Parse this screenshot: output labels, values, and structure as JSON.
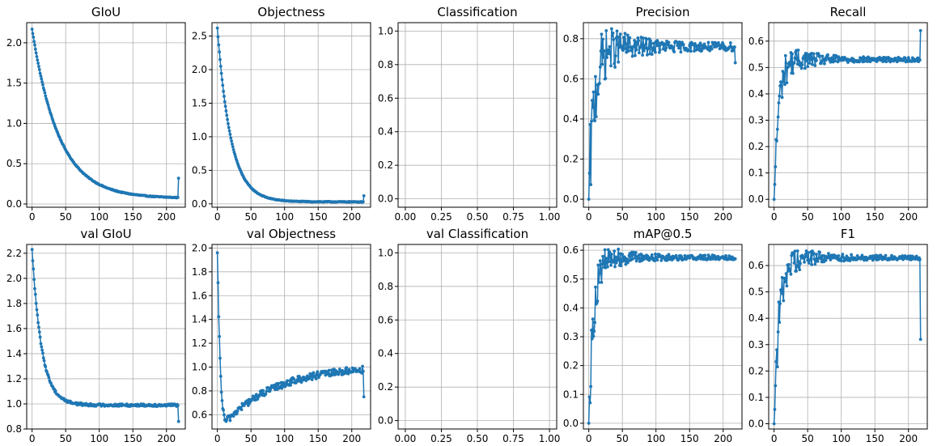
{
  "colors": {
    "series": "#1f77b4",
    "grid": "#b0b0b0",
    "axes": "#000000"
  },
  "chart_data": [
    {
      "type": "line",
      "title": "GIoU",
      "grid": true,
      "xlim": [
        -8,
        228
      ],
      "ylim": [
        -0.04,
        2.25
      ],
      "xticks": [
        0,
        50,
        100,
        150,
        200
      ],
      "xticklabels": [
        "0",
        "50",
        "100",
        "150",
        "200"
      ],
      "yticks": [
        0,
        0.5,
        1,
        1.5,
        2
      ],
      "yticklabels": [
        "0.0",
        "0.5",
        "1.0",
        "1.5",
        "2.0"
      ],
      "series": [
        {
          "gen": "decay",
          "start": 2.17,
          "end": 0.07,
          "k": 0.025,
          "noise": 0.01,
          "last": 0.32
        }
      ]
    },
    {
      "type": "line",
      "title": "Objectness",
      "grid": true,
      "xlim": [
        -8,
        228
      ],
      "ylim": [
        -0.05,
        2.7
      ],
      "xticks": [
        0,
        50,
        100,
        150,
        200
      ],
      "xticklabels": [
        "0",
        "50",
        "100",
        "150",
        "200"
      ],
      "yticks": [
        0,
        0.5,
        1,
        1.5,
        2,
        2.5
      ],
      "yticklabels": [
        "0.0",
        "0.5",
        "1.0",
        "1.5",
        "2.0",
        "2.5"
      ],
      "series": [
        {
          "gen": "decay",
          "start": 2.62,
          "end": 0.03,
          "k": 0.05,
          "noise": 0.01,
          "last": 0.12
        }
      ]
    },
    {
      "type": "line",
      "title": "Classification",
      "grid": true,
      "xlim": [
        -0.05,
        1.05
      ],
      "ylim": [
        -0.05,
        1.05
      ],
      "xticks": [
        0,
        0.25,
        0.5,
        0.75,
        1
      ],
      "xticklabels": [
        "0.00",
        "0.25",
        "0.50",
        "0.75",
        "1.00"
      ],
      "yticks": [
        0,
        0.2,
        0.4,
        0.6,
        0.8,
        1
      ],
      "yticklabels": [
        "0.0",
        "0.2",
        "0.4",
        "0.6",
        "0.8",
        "1.0"
      ],
      "series": []
    },
    {
      "type": "line",
      "title": "Precision",
      "grid": true,
      "xlim": [
        -8,
        228
      ],
      "ylim": [
        -0.04,
        0.88
      ],
      "xticks": [
        0,
        50,
        100,
        150,
        200
      ],
      "xticklabels": [
        "0",
        "50",
        "100",
        "150",
        "200"
      ],
      "yticks": [
        0,
        0.2,
        0.4,
        0.6,
        0.8
      ],
      "yticklabels": [
        "0.0",
        "0.2",
        "0.4",
        "0.6",
        "0.8"
      ],
      "series": [
        {
          "gen": "rise",
          "start": 0.0,
          "plateau": 0.76,
          "k": 0.12,
          "noise": 0.2,
          "noiseDecay": 40,
          "noiseFloor": 0.02,
          "last": 0.68
        }
      ]
    },
    {
      "type": "line",
      "title": "Recall",
      "grid": true,
      "xlim": [
        -8,
        228
      ],
      "ylim": [
        -0.03,
        0.67
      ],
      "xticks": [
        0,
        50,
        100,
        150,
        200
      ],
      "xticklabels": [
        "0",
        "50",
        "100",
        "150",
        "200"
      ],
      "yticks": [
        0,
        0.1,
        0.2,
        0.3,
        0.4,
        0.5,
        0.6
      ],
      "yticklabels": [
        "0.0",
        "0.1",
        "0.2",
        "0.3",
        "0.4",
        "0.5",
        "0.6"
      ],
      "series": [
        {
          "gen": "rise",
          "start": 0.0,
          "plateau": 0.53,
          "k": 0.15,
          "noise": 0.08,
          "noiseDecay": 40,
          "noiseFloor": 0.008,
          "last": 0.64
        }
      ]
    },
    {
      "type": "line",
      "title": "val GIoU",
      "grid": true,
      "xlim": [
        -8,
        228
      ],
      "ylim": [
        0.8,
        2.27
      ],
      "xticks": [
        0,
        50,
        100,
        150,
        200
      ],
      "xticklabels": [
        "0",
        "50",
        "100",
        "150",
        "200"
      ],
      "yticks": [
        0.8,
        1.0,
        1.2,
        1.4,
        1.6,
        1.8,
        2.0,
        2.2
      ],
      "yticklabels": [
        "0.8",
        "1.0",
        "1.2",
        "1.4",
        "1.6",
        "1.8",
        "2.0",
        "2.2"
      ],
      "series": [
        {
          "gen": "decay",
          "start": 2.23,
          "end": 0.99,
          "k": 0.07,
          "noise": 0.02,
          "last": 0.86
        }
      ]
    },
    {
      "type": "line",
      "title": "val Objectness",
      "grid": true,
      "xlim": [
        -8,
        228
      ],
      "ylim": [
        0.48,
        2.03
      ],
      "xticks": [
        0,
        50,
        100,
        150,
        200
      ],
      "xticklabels": [
        "0",
        "50",
        "100",
        "150",
        "200"
      ],
      "yticks": [
        0.6,
        0.8,
        1.0,
        1.2,
        1.4,
        1.6,
        1.8,
        2.0
      ],
      "yticklabels": [
        "0.6",
        "0.8",
        "1.0",
        "1.2",
        "1.4",
        "1.6",
        "1.8",
        "2.0"
      ],
      "series": [
        {
          "gen": "dip",
          "start": 1.96,
          "minAt": 14,
          "min": 0.55,
          "end": 0.98,
          "noise": 0.03,
          "last": 0.75
        }
      ]
    },
    {
      "type": "line",
      "title": "val Classification",
      "grid": true,
      "xlim": [
        -0.05,
        1.05
      ],
      "ylim": [
        -0.05,
        1.05
      ],
      "xticks": [
        0,
        0.25,
        0.5,
        0.75,
        1
      ],
      "xticklabels": [
        "0.00",
        "0.25",
        "0.50",
        "0.75",
        "1.00"
      ],
      "yticks": [
        0,
        0.2,
        0.4,
        0.6,
        0.8,
        1
      ],
      "yticklabels": [
        "0.0",
        "0.2",
        "0.4",
        "0.6",
        "0.8",
        "1.0"
      ],
      "series": []
    },
    {
      "type": "line",
      "title": "mAP@0.5",
      "grid": true,
      "xlim": [
        -8,
        228
      ],
      "ylim": [
        -0.02,
        0.62
      ],
      "xticks": [
        0,
        50,
        100,
        150,
        200
      ],
      "xticklabels": [
        "0",
        "50",
        "100",
        "150",
        "200"
      ],
      "yticks": [
        0,
        0.1,
        0.2,
        0.3,
        0.4,
        0.5,
        0.6
      ],
      "yticklabels": [
        "0.0",
        "0.1",
        "0.2",
        "0.3",
        "0.4",
        "0.5",
        "0.6"
      ],
      "series": [
        {
          "gen": "rise",
          "start": 0.0,
          "plateau": 0.575,
          "k": 0.14,
          "noise": 0.08,
          "noiseDecay": 35,
          "noiseFloor": 0.008,
          "last": 0.57
        }
      ]
    },
    {
      "type": "line",
      "title": "F1",
      "grid": true,
      "xlim": [
        -8,
        228
      ],
      "ylim": [
        -0.02,
        0.68
      ],
      "xticks": [
        0,
        50,
        100,
        150,
        200
      ],
      "xticklabels": [
        "0",
        "50",
        "100",
        "150",
        "200"
      ],
      "yticks": [
        0,
        0.1,
        0.2,
        0.3,
        0.4,
        0.5,
        0.6
      ],
      "yticklabels": [
        "0.0",
        "0.1",
        "0.2",
        "0.3",
        "0.4",
        "0.5",
        "0.6"
      ],
      "series": [
        {
          "gen": "rise",
          "start": 0.0,
          "plateau": 0.63,
          "k": 0.13,
          "noise": 0.1,
          "noiseDecay": 35,
          "noiseFloor": 0.008,
          "last": 0.32
        }
      ]
    }
  ]
}
